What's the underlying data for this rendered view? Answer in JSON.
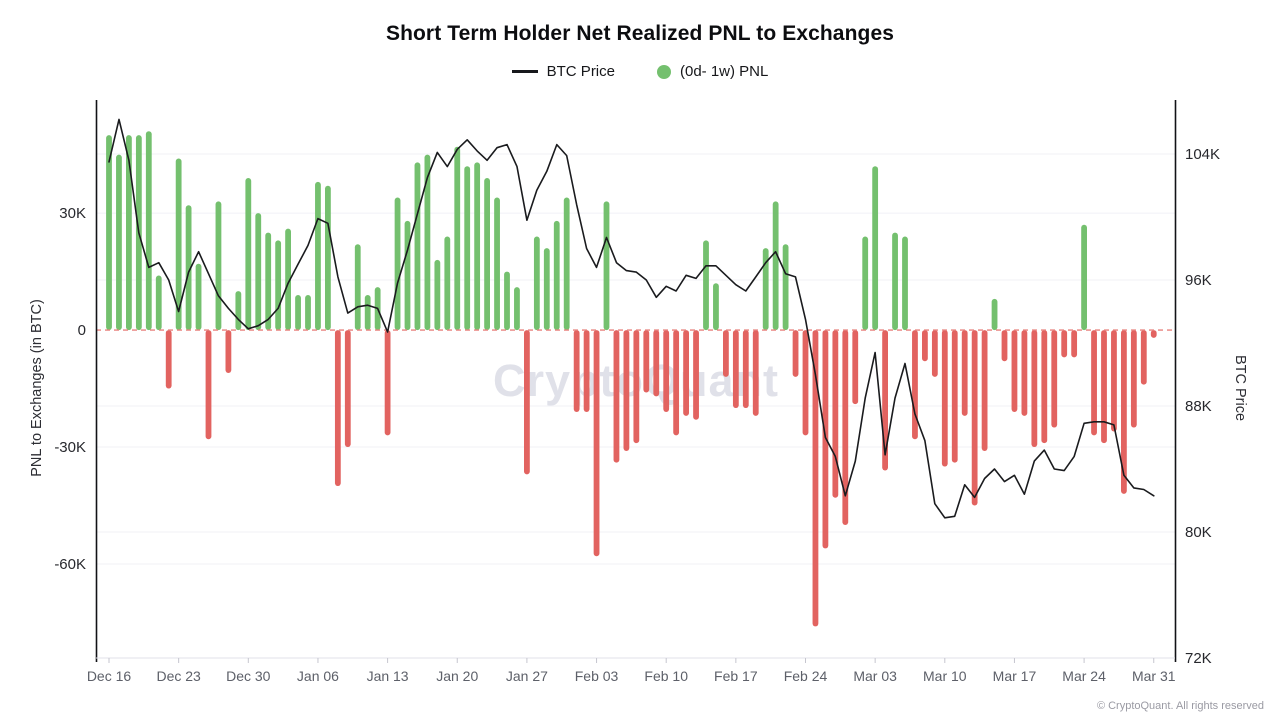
{
  "header": {
    "title": "Short Term Holder Net Realized PNL to Exchanges"
  },
  "legend": {
    "price_label": "BTC Price",
    "pnl_label": "(0d- 1w) PNL"
  },
  "watermark": {
    "text": "CryptoQuant"
  },
  "footer": {
    "copyright": "© CryptoQuant. All rights reserved"
  },
  "chart_data": {
    "type": "bar+line",
    "title": "Short Term Holder Net Realized PNL to Exchanges",
    "dates": [
      "Dec 16",
      "Dec 17",
      "Dec 18",
      "Dec 19",
      "Dec 20",
      "Dec 21",
      "Dec 22",
      "Dec 23",
      "Dec 24",
      "Dec 25",
      "Dec 26",
      "Dec 27",
      "Dec 28",
      "Dec 29",
      "Dec 30",
      "Dec 31",
      "Jan 01",
      "Jan 02",
      "Jan 03",
      "Jan 04",
      "Jan 05",
      "Jan 06",
      "Jan 07",
      "Jan 08",
      "Jan 09",
      "Jan 10",
      "Jan 11",
      "Jan 12",
      "Jan 13",
      "Jan 14",
      "Jan 15",
      "Jan 16",
      "Jan 17",
      "Jan 18",
      "Jan 19",
      "Jan 20",
      "Jan 21",
      "Jan 22",
      "Jan 23",
      "Jan 24",
      "Jan 25",
      "Jan 26",
      "Jan 27",
      "Jan 28",
      "Jan 29",
      "Jan 30",
      "Jan 31",
      "Feb 01",
      "Feb 02",
      "Feb 03",
      "Feb 04",
      "Feb 05",
      "Feb 06",
      "Feb 07",
      "Feb 08",
      "Feb 09",
      "Feb 10",
      "Feb 11",
      "Feb 12",
      "Feb 13",
      "Feb 14",
      "Feb 15",
      "Feb 16",
      "Feb 17",
      "Feb 18",
      "Feb 19",
      "Feb 20",
      "Feb 21",
      "Feb 22",
      "Feb 23",
      "Feb 24",
      "Feb 25",
      "Feb 26",
      "Feb 27",
      "Feb 28",
      "Mar 01",
      "Mar 02",
      "Mar 03",
      "Mar 04",
      "Mar 05",
      "Mar 06",
      "Mar 07",
      "Mar 08",
      "Mar 09",
      "Mar 10",
      "Mar 11",
      "Mar 12",
      "Mar 13",
      "Mar 14",
      "Mar 15",
      "Mar 16",
      "Mar 17",
      "Mar 18",
      "Mar 19",
      "Mar 20",
      "Mar 21",
      "Mar 22",
      "Mar 23",
      "Mar 24",
      "Mar 25",
      "Mar 26",
      "Mar 27",
      "Mar 28",
      "Mar 29",
      "Mar 30",
      "Mar 31"
    ],
    "series": [
      {
        "name": "(0d- 1w) PNL",
        "type": "bar",
        "axis": "left",
        "unit": "K BTC",
        "values": [
          50,
          45,
          50,
          50,
          51,
          14,
          -15,
          44,
          32,
          17,
          -28,
          33,
          -11,
          10,
          39,
          30,
          25,
          23,
          26,
          9,
          9,
          38,
          37,
          -40,
          -30,
          22,
          9,
          11,
          -27,
          34,
          28,
          43,
          45,
          18,
          24,
          47,
          42,
          43,
          39,
          34,
          15,
          11,
          -37,
          24,
          21,
          28,
          34,
          -21,
          -21,
          -58,
          33,
          -34,
          -31,
          -29,
          -16,
          -17,
          -21,
          -27,
          -22,
          -23,
          23,
          12,
          -12,
          -20,
          -20,
          -22,
          21,
          33,
          22,
          -12,
          -27,
          -76,
          -56,
          -43,
          -50,
          -19,
          24,
          42,
          -36,
          25,
          24,
          -28,
          -8,
          -12,
          -35,
          -34,
          -22,
          -45,
          -31,
          8,
          -8,
          -21,
          -22,
          -30,
          -29,
          -25,
          -7,
          -7,
          27,
          -27,
          -29,
          -26,
          -42,
          -25,
          -14,
          -2
        ]
      },
      {
        "name": "BTC Price",
        "type": "line",
        "axis": "right",
        "unit": "K USD",
        "values": [
          103.5,
          106.2,
          103.6,
          99.0,
          96.8,
          97.1,
          96.0,
          94.0,
          96.5,
          97.8,
          96.4,
          95.0,
          94.2,
          93.5,
          92.9,
          93.1,
          93.5,
          94.2,
          95.8,
          97.0,
          98.2,
          99.9,
          99.6,
          96.2,
          93.9,
          94.3,
          94.4,
          94.2,
          92.7,
          95.8,
          97.9,
          100.2,
          102.5,
          104.1,
          103.2,
          104.3,
          104.9,
          104.2,
          103.6,
          104.4,
          104.6,
          103.2,
          99.8,
          101.7,
          102.9,
          104.6,
          103.9,
          100.8,
          98.0,
          96.8,
          98.7,
          97.1,
          96.6,
          96.5,
          96.0,
          94.9,
          95.6,
          95.3,
          96.3,
          96.1,
          96.9,
          96.9,
          96.3,
          95.7,
          95.3,
          96.2,
          97.1,
          97.8,
          96.4,
          96.2,
          93.5,
          90.0,
          86.0,
          84.8,
          82.3,
          84.5,
          88.5,
          91.4,
          84.9,
          88.5,
          90.7,
          87.5,
          85.8,
          81.8,
          80.9,
          81.0,
          83.0,
          82.2,
          83.4,
          84.0,
          83.2,
          83.6,
          82.4,
          84.5,
          85.2,
          84.0,
          83.9,
          84.8,
          86.9,
          87.0,
          87.0,
          86.8,
          83.6,
          82.8,
          82.7,
          82.3
        ]
      }
    ],
    "left_axis": {
      "label": "PNL to Exchanges (in BTC)",
      "range": [
        -84.1,
        59.0
      ],
      "ticks": [
        {
          "v": 30,
          "label": "30K"
        },
        {
          "v": 0,
          "label": "0"
        },
        {
          "v": -30,
          "label": "-30K"
        },
        {
          "v": -60,
          "label": "-60K"
        }
      ]
    },
    "right_axis": {
      "label": "BTC Price",
      "range": [
        72,
        107.43
      ],
      "ticks": [
        {
          "v": 104,
          "label": "104K"
        },
        {
          "v": 96,
          "label": "96K"
        },
        {
          "v": 88,
          "label": "88K"
        },
        {
          "v": 80,
          "label": "80K"
        },
        {
          "v": 72,
          "label": "72K"
        }
      ]
    },
    "x_axis": {
      "tick_every_days": 7,
      "tick_labels": [
        "Dec 16",
        "Dec 23",
        "Dec 30",
        "Jan 06",
        "Jan 13",
        "Jan 20",
        "Jan 27",
        "Feb 03",
        "Feb 10",
        "Feb 17",
        "Feb 24",
        "Mar 03",
        "Mar 10",
        "Mar 17",
        "Mar 24",
        "Mar 31"
      ]
    },
    "grid": true,
    "legend_position": "top-center",
    "colors": {
      "positive": "#74c06e",
      "negative": "#e26360",
      "line": "#1a1b1e",
      "zero_line": "#e8827e",
      "grid": "#f1f1f6",
      "axis": "#111216",
      "x_tick_text": "#5d6069",
      "y_tick_text": "#27282d"
    }
  }
}
